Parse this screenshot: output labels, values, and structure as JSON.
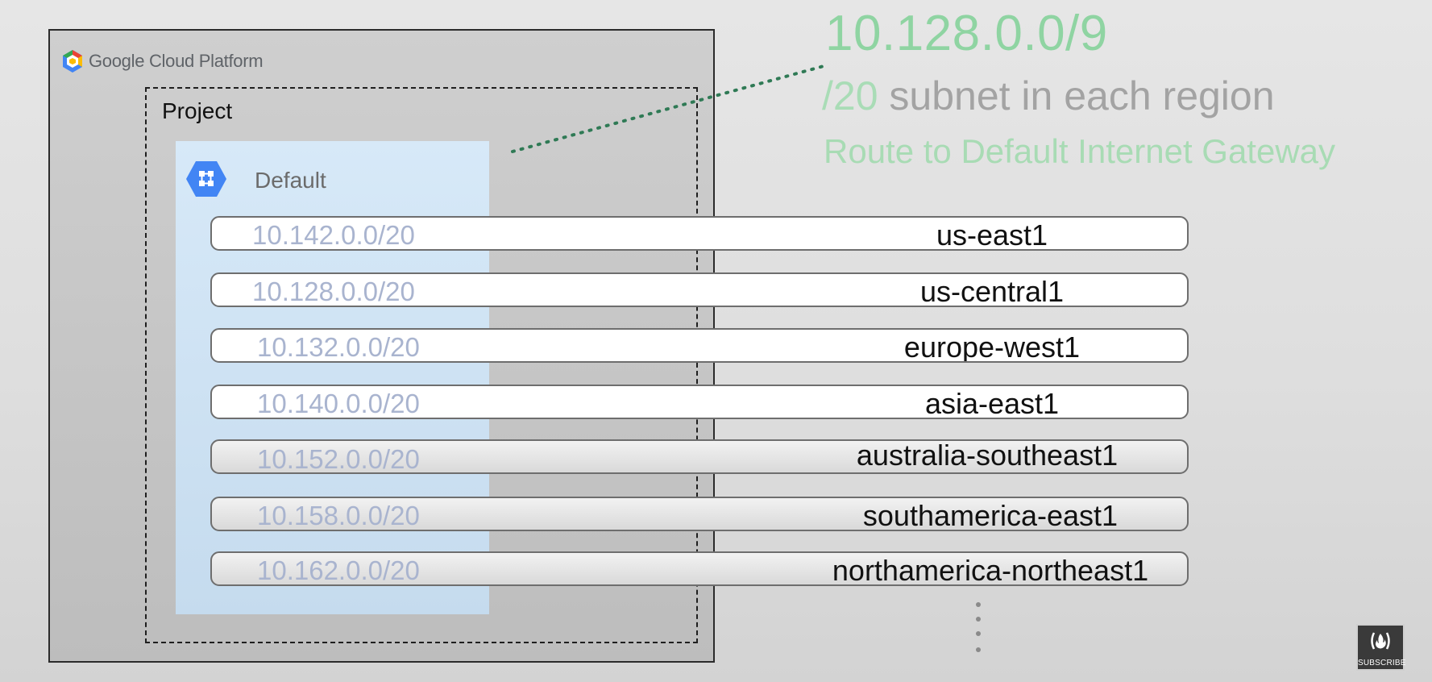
{
  "brand": {
    "google": "Google",
    "product": "Cloud Platform",
    "logo_icon": "google-cloud-hexagon-icon"
  },
  "project": {
    "label": "Project"
  },
  "vpc": {
    "label": "Default",
    "icon": "vpc-network-icon"
  },
  "callout": {
    "cidr": "10.128.0.0/9",
    "subnet_prefix": "/20",
    "subnet_text": " subnet in each region",
    "route": "Route to Default Internet Gateway"
  },
  "regions": [
    {
      "cidr": "10.142.0.0/20",
      "name": "us-east1"
    },
    {
      "cidr": "10.128.0.0/20",
      "name": "us-central1"
    },
    {
      "cidr": "10.132.0.0/20",
      "name": "europe-west1"
    },
    {
      "cidr": "10.140.0.0/20",
      "name": "asia-east1"
    },
    {
      "cidr": "10.152.0.0/20",
      "name": "australia-southeast1"
    },
    {
      "cidr": "10.158.0.0/20",
      "name": "southamerica-east1"
    },
    {
      "cidr": "10.162.0.0/20",
      "name": "northamerica-northeast1"
    }
  ],
  "subscribe": {
    "label": "SUBSCRIBE",
    "icon": "freecodecamp-flame-icon"
  },
  "colors": {
    "cidr_green": "#8fd4a2",
    "route_green": "#a8dbb4",
    "vpc_blue": "#d7e9f8",
    "icon_blue": "#4285f4"
  }
}
